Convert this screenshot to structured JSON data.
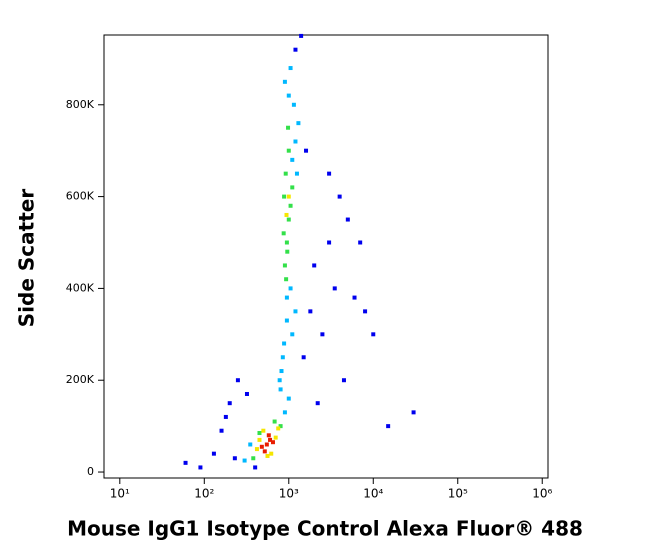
{
  "chart_data": {
    "type": "scatter",
    "xlabel": "Mouse IgG1 Isotype Control Alexa Fluor® 488",
    "ylabel": "Side Scatter",
    "xscale": "log",
    "xlim": [
      6.5,
      1170000
    ],
    "ylim": [
      -13000,
      952000
    ],
    "xticks": [
      {
        "value": 10,
        "label": "10¹"
      },
      {
        "value": 100,
        "label": "10²"
      },
      {
        "value": 1000,
        "label": "10³"
      },
      {
        "value": 10000,
        "label": "10⁴"
      },
      {
        "value": 100000,
        "label": "10⁵"
      },
      {
        "value": 1000000,
        "label": "10⁶"
      }
    ],
    "yticks": [
      0,
      {
        "value": 200000,
        "label": "200K"
      },
      {
        "value": 400000,
        "label": "400K"
      },
      {
        "value": 600000,
        "label": "600K"
      },
      {
        "value": 800000,
        "label": "800K"
      }
    ],
    "series": [
      {
        "color": "#0000ee",
        "x": [
          60,
          90,
          130,
          160,
          200,
          250,
          180,
          230,
          320,
          400,
          1500,
          1800,
          2000,
          2500,
          3000,
          3500,
          4000,
          5000,
          6000,
          8000,
          10000,
          3000,
          4500,
          2200,
          1600,
          7000,
          15000,
          30000,
          1200,
          1400
        ],
        "values": [
          20000,
          10000,
          40000,
          90000,
          150000,
          200000,
          120000,
          30000,
          170000,
          10000,
          250000,
          350000,
          450000,
          300000,
          500000,
          400000,
          600000,
          550000,
          380000,
          350000,
          300000,
          650000,
          200000,
          150000,
          700000,
          500000,
          100000,
          130000,
          920000,
          950000
        ]
      },
      {
        "color": "#00b8ff",
        "x": [
          300,
          350,
          900,
          1000,
          780,
          850,
          1100,
          1200,
          950,
          1050,
          800,
          1150,
          1000,
          900,
          1200,
          1100,
          880,
          1300,
          1050,
          950,
          820,
          1250
        ],
        "values": [
          25000,
          60000,
          130000,
          160000,
          200000,
          250000,
          300000,
          350000,
          380000,
          400000,
          180000,
          800000,
          820000,
          850000,
          720000,
          680000,
          280000,
          760000,
          880000,
          330000,
          220000,
          650000
        ]
      },
      {
        "color": "#33e04a",
        "x": [
          380,
          800,
          680,
          450,
          900,
          950,
          1000,
          880,
          920,
          1050,
          960,
          870,
          1000,
          930,
          1100,
          980
        ],
        "values": [
          30000,
          100000,
          110000,
          85000,
          450000,
          500000,
          550000,
          600000,
          650000,
          580000,
          480000,
          520000,
          700000,
          420000,
          620000,
          750000
        ]
      },
      {
        "color": "#f5e600",
        "x": [
          420,
          700,
          500,
          620,
          750,
          450,
          560,
          940,
          1000
        ],
        "values": [
          50000,
          75000,
          90000,
          40000,
          95000,
          70000,
          35000,
          560000,
          600000
        ]
      },
      {
        "color": "#e81c00",
        "x": [
          480,
          550,
          600,
          520,
          650,
          580
        ],
        "values": [
          55000,
          60000,
          70000,
          45000,
          65000,
          80000
        ]
      }
    ]
  }
}
